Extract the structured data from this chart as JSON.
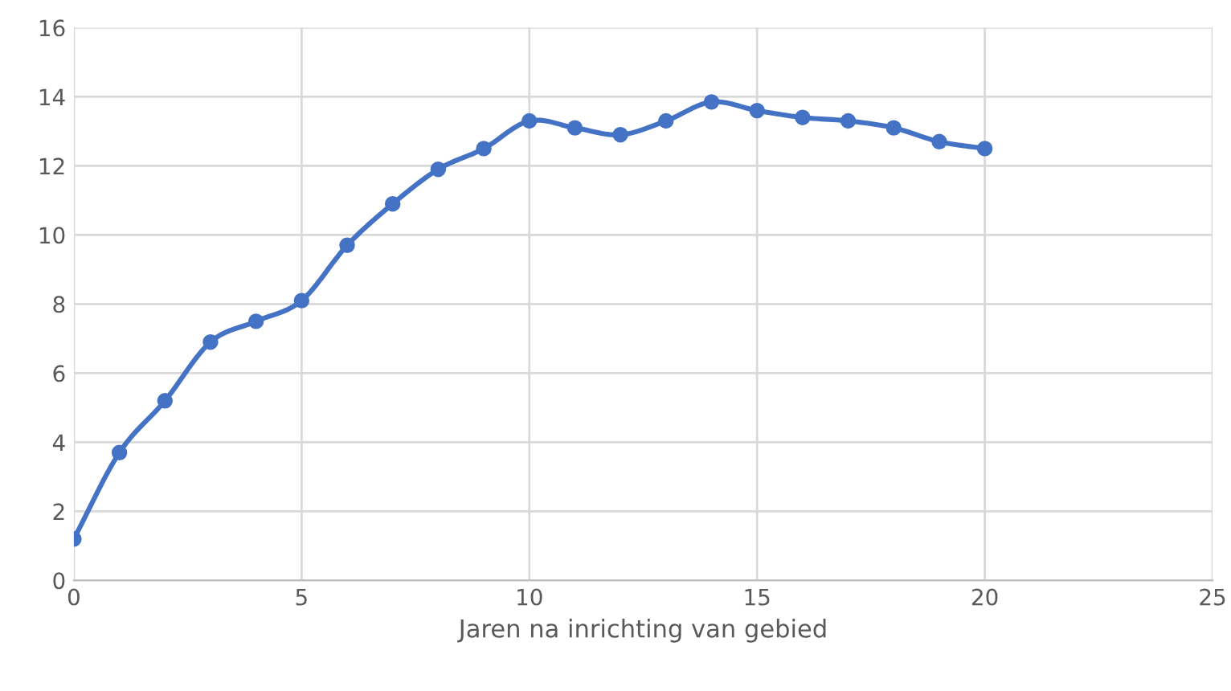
{
  "chart_data": {
    "type": "line",
    "xlabel": "Jaren na inrichting van gebied",
    "x": [
      0,
      1,
      2,
      3,
      4,
      5,
      6,
      7,
      8,
      9,
      10,
      11,
      12,
      13,
      14,
      15,
      16,
      17,
      18,
      19,
      20
    ],
    "series": [
      {
        "color": "#4472c4",
        "values": [
          1.2,
          3.7,
          5.2,
          6.9,
          7.5,
          8.1,
          9.7,
          10.9,
          11.9,
          12.5,
          13.3,
          13.1,
          12.9,
          13.3,
          13.85,
          13.6,
          13.4,
          13.3,
          13.1,
          12.7,
          12.5
        ]
      }
    ],
    "xlim": [
      0,
      25
    ],
    "xticks": [
      0,
      5,
      10,
      15,
      20,
      25
    ],
    "ylim": [
      0,
      16
    ],
    "yticks": [
      0,
      2,
      4,
      6,
      8,
      10,
      12,
      14,
      16
    ],
    "grid": true,
    "marker": "circle",
    "line_style": "solid"
  }
}
